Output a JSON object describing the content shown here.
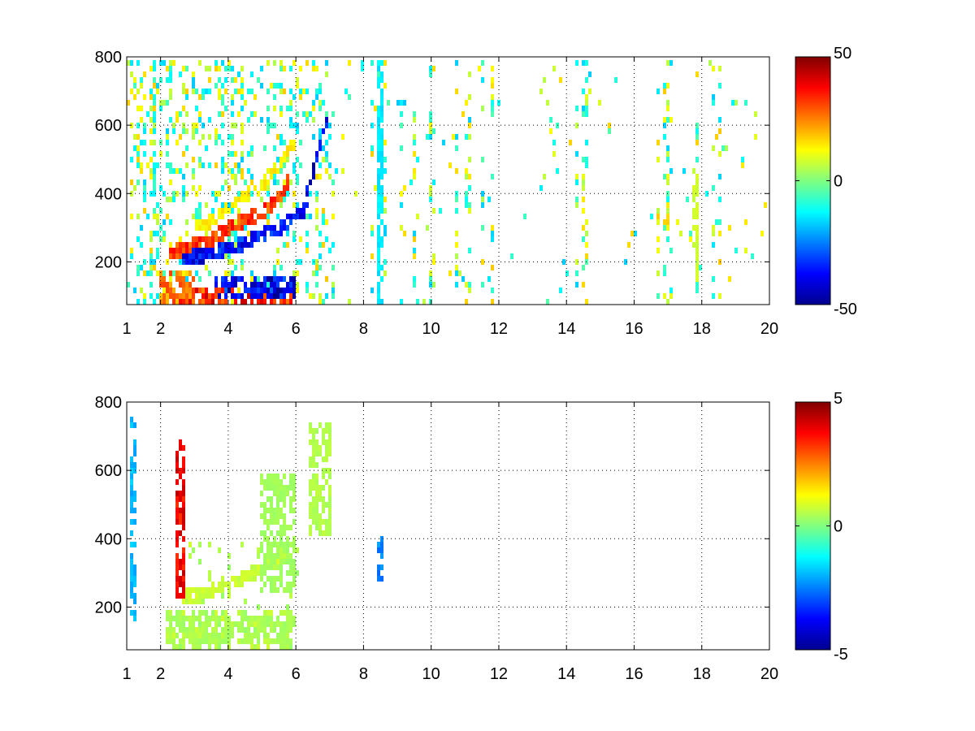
{
  "chart_data": [
    {
      "type": "heatmap",
      "title": "",
      "xlabel": "",
      "ylabel": "",
      "xlim": [
        1,
        20
      ],
      "ylim": [
        75,
        800
      ],
      "xticks": [
        1,
        2,
        4,
        6,
        8,
        10,
        12,
        14,
        16,
        18,
        20
      ],
      "xtick_labels": [
        "1",
        "2",
        "4",
        "6",
        "8",
        "10",
        "12",
        "14",
        "16",
        "18",
        "20"
      ],
      "yticks": [
        200,
        400,
        600,
        800
      ],
      "ytick_labels": [
        "200",
        "400",
        "600",
        "800"
      ],
      "grid": true,
      "colormap": "jet",
      "clim": [
        -50,
        50
      ],
      "colorbar_ticks": [
        -50,
        0,
        50
      ],
      "colorbar_tick_labels": [
        "-50",
        "0",
        "50"
      ],
      "colorbar_position": "right",
      "features": [
        {
          "kind": "band",
          "x": [
            2.3,
            2.8,
            3.5,
            4.2,
            5.0,
            5.5,
            5.8
          ],
          "y": [
            230,
            245,
            270,
            310,
            350,
            390,
            440
          ],
          "value": 35
        },
        {
          "kind": "band",
          "x": [
            2.6,
            3.2,
            4.0,
            4.8,
            5.5,
            6.0,
            6.4
          ],
          "y": [
            210,
            220,
            240,
            270,
            300,
            330,
            370
          ],
          "value": -40
        },
        {
          "kind": "band",
          "x": [
            3.0,
            3.6,
            4.3,
            5.0,
            5.6,
            6.0
          ],
          "y": [
            300,
            330,
            380,
            430,
            500,
            560
          ],
          "value": 15
        },
        {
          "kind": "band",
          "x": [
            6.3,
            6.5,
            6.7,
            6.9,
            7.0
          ],
          "y": [
            400,
            460,
            530,
            600,
            660
          ],
          "value": -45
        },
        {
          "kind": "region",
          "x": [
            2.5,
            6.0
          ],
          "y": [
            80,
            130
          ],
          "value": 40
        },
        {
          "kind": "region",
          "x": [
            3.6,
            6.0
          ],
          "y": [
            90,
            160
          ],
          "value": -45
        },
        {
          "kind": "region",
          "x": [
            2.0,
            3.0
          ],
          "y": [
            80,
            180
          ],
          "value": 30
        },
        {
          "kind": "column",
          "x": 8.55,
          "y": [
            80,
            800
          ],
          "value": -15
        },
        {
          "kind": "column",
          "x": 17.9,
          "y": [
            160,
            480
          ],
          "value": 8
        }
      ]
    },
    {
      "type": "heatmap",
      "title": "",
      "xlabel": "",
      "ylabel": "",
      "xlim": [
        1,
        20
      ],
      "ylim": [
        75,
        800
      ],
      "xticks": [
        1,
        2,
        4,
        6,
        8,
        10,
        12,
        14,
        16,
        18,
        20
      ],
      "xtick_labels": [
        "1",
        "2",
        "4",
        "6",
        "8",
        "10",
        "12",
        "14",
        "16",
        "18",
        "20"
      ],
      "yticks": [
        200,
        400,
        600,
        800
      ],
      "ytick_labels": [
        "200",
        "400",
        "600",
        "800"
      ],
      "grid": true,
      "colormap": "jet",
      "clim": [
        -5,
        5
      ],
      "colorbar_ticks": [
        -5,
        0,
        5
      ],
      "colorbar_tick_labels": [
        "-5",
        "0",
        "5"
      ],
      "colorbar_position": "right",
      "features": [
        {
          "kind": "band",
          "x": [
            2.6,
            3.2,
            4.0,
            4.8,
            5.4,
            5.8
          ],
          "y": [
            225,
            240,
            265,
            300,
            340,
            380
          ],
          "value": 0.8
        },
        {
          "kind": "region",
          "x": [
            2.2,
            6.0
          ],
          "y": [
            85,
            180
          ],
          "value": 0.5
        },
        {
          "kind": "region",
          "x": [
            6.4,
            7.1
          ],
          "y": [
            420,
            750
          ],
          "value": 0.6
        },
        {
          "kind": "region",
          "x": [
            5.0,
            6.0
          ],
          "y": [
            250,
            600
          ],
          "value": 0.4
        },
        {
          "kind": "column",
          "x": 2.6,
          "y": [
            220,
            700
          ],
          "value": 4
        },
        {
          "kind": "column",
          "x": 1.2,
          "y": [
            160,
            760
          ],
          "value": -2
        },
        {
          "kind": "column",
          "x": 8.55,
          "y": [
            280,
            420
          ],
          "value": -2.5
        }
      ]
    }
  ]
}
